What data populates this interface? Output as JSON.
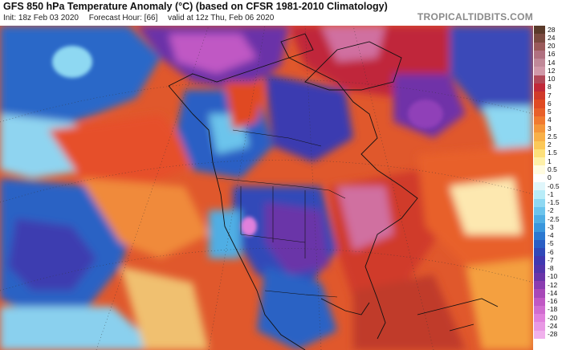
{
  "header": {
    "title": "GFS 850 hPa Temperature Anomaly (°C) (based on CFSR 1981-2010 Climatology)",
    "init": "Init: 18z Feb 03 2020",
    "forecast_hour": "Forecast Hour: [66]",
    "valid": "valid at 12z Thu, Feb 06 2020",
    "brand": "TROPICALTIDBITS.COM"
  },
  "colorbar": {
    "labels": [
      "28",
      "24",
      "20",
      "16",
      "14",
      "12",
      "10",
      "8",
      "7",
      "6",
      "5",
      "4",
      "3",
      "2.5",
      "2",
      "1.5",
      "1",
      "0.5",
      "0",
      "-0.5",
      "-1",
      "-1.5",
      "-2",
      "-2.5",
      "-3",
      "-4",
      "-5",
      "-6",
      "-7",
      "-8",
      "-10",
      "-12",
      "-14",
      "-16",
      "-18",
      "-20",
      "-24",
      "-28"
    ],
    "colors": [
      "#5a3a2a",
      "#7a4a40",
      "#9a5a5a",
      "#b07080",
      "#c08898",
      "#d098a8",
      "#b04858",
      "#c02838",
      "#d03a2a",
      "#e04a22",
      "#e8602a",
      "#f07a30",
      "#f4963a",
      "#f8b048",
      "#fcc858",
      "#fde07a",
      "#fef0a8",
      "#fffbe0",
      "#ffffff",
      "#e0f6fb",
      "#b8ecf8",
      "#8ed8f2",
      "#6cc4ec",
      "#50aee4",
      "#3a96dc",
      "#2c78d0",
      "#2a5ec4",
      "#3048b8",
      "#4038b0",
      "#5234aa",
      "#6a34a8",
      "#8a3cb0",
      "#a848b8",
      "#c058c4",
      "#d06cd0",
      "#e080dc",
      "#e898e4",
      "#f0b0ec"
    ]
  },
  "map": {
    "region": "North America"
  }
}
